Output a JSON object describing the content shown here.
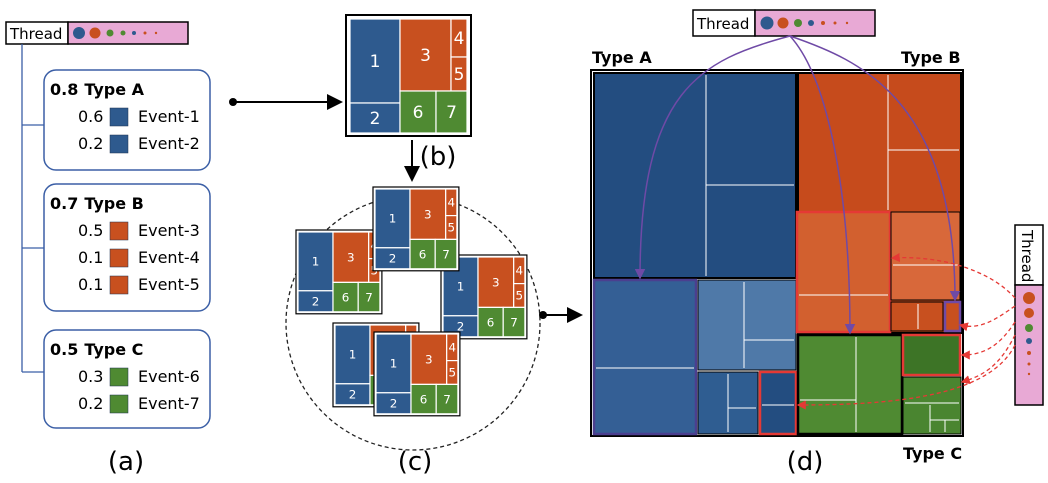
{
  "colors": {
    "blue": "#2e5a8e",
    "blue_dark": "#234d80",
    "blue_light": "#4f79a8",
    "orange": "#c8501f",
    "orange_light": "#d8683a",
    "green": "#4f8a32",
    "green_dark": "#3d7426",
    "pink": "#e8a9d5",
    "red": "#e53935",
    "purple": "#6f4aa6",
    "box_border": "#3b5fa6"
  },
  "thread": {
    "label": "Thread"
  },
  "panel_a": {
    "caption": "(a)",
    "groups": [
      {
        "weight": "0.8",
        "type": "Type A",
        "events": [
          {
            "weight": "0.6",
            "name": "Event-1",
            "color": "#2e5a8e"
          },
          {
            "weight": "0.2",
            "name": "Event-2",
            "color": "#2e5a8e"
          }
        ]
      },
      {
        "weight": "0.7",
        "type": "Type B",
        "events": [
          {
            "weight": "0.5",
            "name": "Event-3",
            "color": "#c8501f"
          },
          {
            "weight": "0.1",
            "name": "Event-4",
            "color": "#c8501f"
          },
          {
            "weight": "0.1",
            "name": "Event-5",
            "color": "#c8501f"
          }
        ]
      },
      {
        "weight": "0.5",
        "type": "Type C",
        "events": [
          {
            "weight": "0.3",
            "name": "Event-6",
            "color": "#4f8a32"
          },
          {
            "weight": "0.2",
            "name": "Event-7",
            "color": "#4f8a32"
          }
        ]
      }
    ]
  },
  "panel_b": {
    "caption": "(b)",
    "cells": [
      "1",
      "2",
      "3",
      "4",
      "5",
      "6",
      "7"
    ]
  },
  "panel_c": {
    "caption": "(c)"
  },
  "panel_d": {
    "caption": "(d)",
    "label_type_a": "Type A",
    "label_type_b": "Type B",
    "label_type_c": "Type C"
  }
}
